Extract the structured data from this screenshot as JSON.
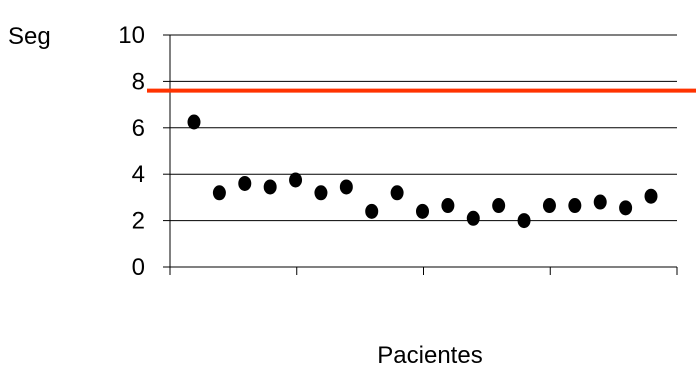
{
  "chart_data": {
    "type": "scatter",
    "title": "",
    "xlabel": "Pacientes",
    "ylabel": "Seg",
    "ylim": [
      0,
      10
    ],
    "yticks": [
      "0",
      "2",
      "4",
      "6",
      "8",
      "10"
    ],
    "grid": true,
    "series": [
      {
        "values": [
          6.25,
          3.2,
          3.6,
          3.45,
          3.75,
          3.2,
          3.45,
          2.4,
          3.2,
          2.4,
          2.65,
          2.1,
          2.65,
          2.0,
          2.65,
          2.65,
          2.8,
          2.55,
          3.05
        ]
      }
    ],
    "reference_line": {
      "y": 7.6,
      "color": "#ff3300"
    },
    "colors": {
      "points": "#000000",
      "grid": "#000000"
    }
  }
}
